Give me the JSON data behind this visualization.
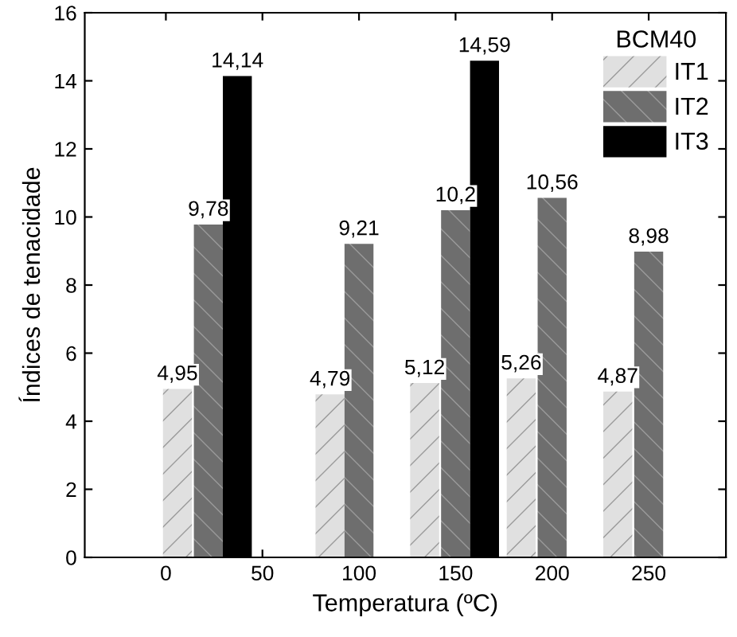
{
  "chart_data": {
    "type": "bar",
    "xlabel": "Temperatura (ºC)",
    "ylabel": "Índices de tenacidade",
    "legend_title": "BCM40",
    "legend": "top right",
    "xlim": [
      -42,
      290
    ],
    "xticks": [
      0,
      50,
      100,
      150,
      200,
      250
    ],
    "ylim": [
      0,
      16
    ],
    "yticks": [
      0,
      2,
      4,
      6,
      8,
      10,
      12,
      14,
      16
    ],
    "grid": false,
    "series": [
      {
        "name": "IT1",
        "color": "#e0e0e0",
        "x": [
          6,
          85,
          134,
          184,
          234
        ],
        "values": [
          4.95,
          4.79,
          5.12,
          5.26,
          4.87
        ],
        "value_labels": [
          "4,95",
          "4,79",
          "5,12",
          "5,26",
          "4,87"
        ]
      },
      {
        "name": "IT2",
        "color": "#6e6e6e",
        "x": [
          22,
          100,
          150,
          200,
          250
        ],
        "values": [
          9.78,
          9.21,
          10.2,
          10.56,
          8.98
        ],
        "value_labels": [
          "9,78",
          "9,21",
          "10,2",
          "10,56",
          "8,98"
        ]
      },
      {
        "name": "IT3",
        "color": "#000000",
        "x": [
          37,
          165
        ],
        "values": [
          14.14,
          14.59
        ],
        "value_labels": [
          "14,14",
          "14,59"
        ]
      }
    ]
  }
}
